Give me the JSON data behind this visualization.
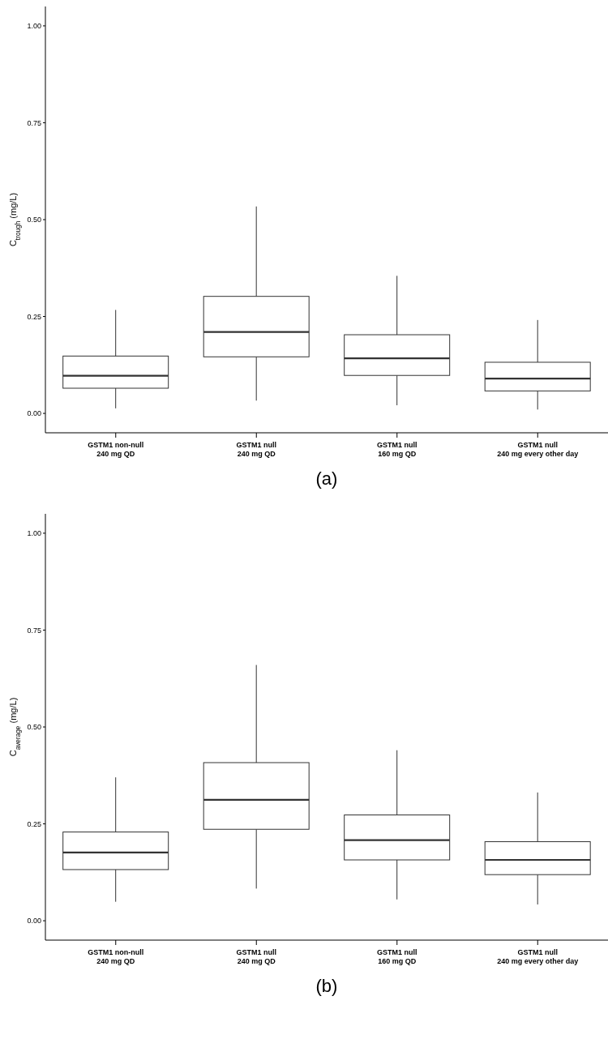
{
  "chart_data": [
    {
      "type": "box",
      "title": "(a)",
      "ylabel": "C$_{trough}$ (mg/L)",
      "categories": [
        "GSTM1 non-null\n240 mg QD",
        "GSTM1 null\n240 mg QD",
        "GSTM1 null\n160 mg QD",
        "GSTM1 null\n240 mg every other day"
      ],
      "boxes": [
        {
          "low": 0.013,
          "q1": 0.065,
          "median": 0.097,
          "q3": 0.148,
          "high": 0.267
        },
        {
          "low": 0.033,
          "q1": 0.146,
          "median": 0.21,
          "q3": 0.302,
          "high": 0.534
        },
        {
          "low": 0.021,
          "q1": 0.098,
          "median": 0.142,
          "q3": 0.203,
          "high": 0.355
        },
        {
          "low": 0.01,
          "q1": 0.058,
          "median": 0.09,
          "q3": 0.132,
          "high": 0.241
        }
      ],
      "color": "#333333",
      "ylim": [
        -0.05,
        1.05
      ],
      "yticks": [
        {
          "value": 0,
          "label": "0.00"
        },
        {
          "value": 0.25,
          "label": "0.25"
        },
        {
          "value": 0.5,
          "label": "0.50"
        },
        {
          "value": 0.75,
          "label": "0.75"
        },
        {
          "value": 1,
          "label": "1.00"
        }
      ],
      "grid": false,
      "legend": false
    },
    {
      "type": "box",
      "title": "(b)",
      "ylabel": "C$_{average}$ (mg/L)",
      "categories": [
        "GSTM1 non-null\n240 mg QD",
        "GSTM1 null\n240 mg QD",
        "GSTM1 null\n160 mg QD",
        "GSTM1 null\n240 mg every other day"
      ],
      "boxes": [
        {
          "low": 0.049,
          "q1": 0.132,
          "median": 0.176,
          "q3": 0.229,
          "high": 0.37
        },
        {
          "low": 0.083,
          "q1": 0.236,
          "median": 0.312,
          "q3": 0.408,
          "high": 0.66
        },
        {
          "low": 0.055,
          "q1": 0.157,
          "median": 0.208,
          "q3": 0.273,
          "high": 0.44
        },
        {
          "low": 0.042,
          "q1": 0.119,
          "median": 0.157,
          "q3": 0.204,
          "high": 0.331
        }
      ],
      "color": "#333333",
      "ylim": [
        -0.05,
        1.05
      ],
      "yticks": [
        {
          "value": 0,
          "label": "0.00"
        },
        {
          "value": 0.25,
          "label": "0.25"
        },
        {
          "value": 0.5,
          "label": "0.50"
        },
        {
          "value": 0.75,
          "label": "0.75"
        },
        {
          "value": 1,
          "label": "1.00"
        }
      ],
      "grid": false,
      "legend": false
    }
  ]
}
